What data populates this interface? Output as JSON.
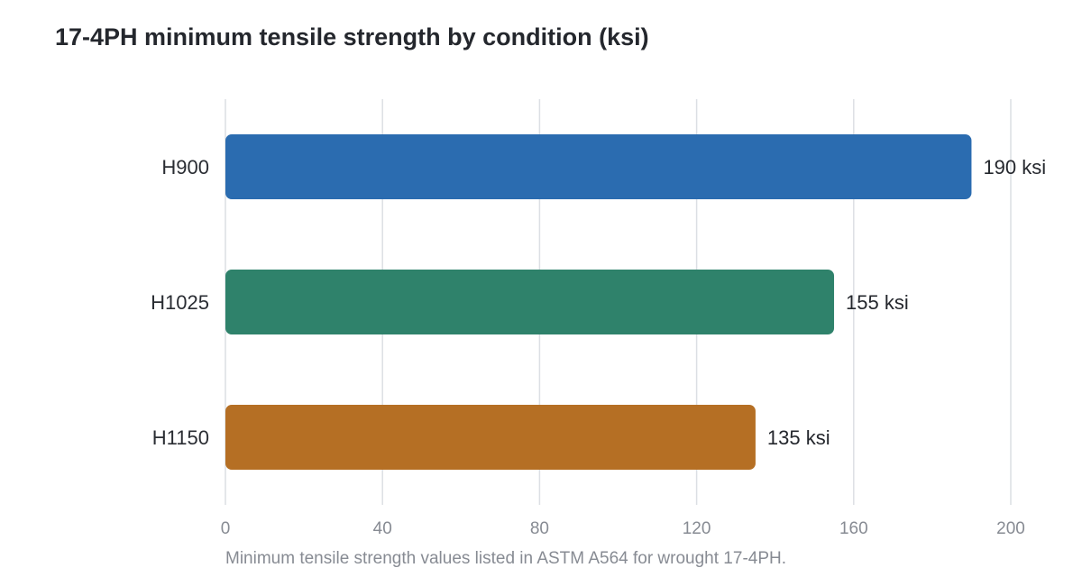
{
  "chart_data": {
    "type": "bar",
    "orientation": "horizontal",
    "title": "17-4PH minimum tensile strength by condition (ksi)",
    "note": "Minimum tensile strength values listed in ASTM A564 for wrought 17-4PH.",
    "categories": [
      "H900",
      "H1025",
      "H1150"
    ],
    "values": [
      190,
      155,
      135
    ],
    "value_labels": [
      "190 ksi",
      "155 ksi",
      "135 ksi"
    ],
    "colors": [
      "#2b6cb0",
      "#2f826b",
      "#b56f24"
    ],
    "xlim": [
      0,
      200
    ],
    "xticks": [
      0,
      40,
      80,
      120,
      160,
      200
    ],
    "xtick_labels": [
      "0",
      "40",
      "80",
      "120",
      "160",
      "200"
    ],
    "grid": "vertical",
    "legend": "none"
  }
}
